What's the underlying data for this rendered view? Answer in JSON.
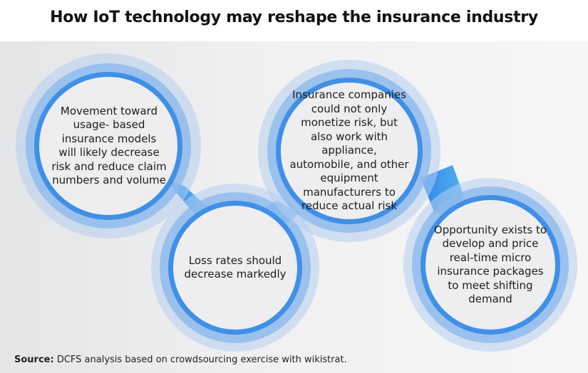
{
  "title": "How IoT  technology may reshape the insurance industry",
  "colors": {
    "ring_outer": "#aec7ec",
    "ring_mid": "#7fb0ea",
    "ring_inner": "#3d8fe6",
    "circle_fill": "#eeeef0",
    "connector": "#4aa0ee"
  },
  "circles": [
    {
      "id": "c1",
      "text": "Movement toward usage- based insurance models will likely decrease risk and reduce claim numbers and volume"
    },
    {
      "id": "c2",
      "text": "Loss rates should decrease markedly"
    },
    {
      "id": "c3",
      "text": "Insurance companies could not only monetize risk, but also work with appliance, automobile, and other equipment manufacturers to reduce actual risk"
    },
    {
      "id": "c4",
      "text": "Opportunity exists to develop and price real-time micro insurance packages to meet shifting demand"
    }
  ],
  "source": {
    "label": "Source:",
    "text": " DCFS analysis based on crowdsourcing exercise with wikistrat."
  }
}
